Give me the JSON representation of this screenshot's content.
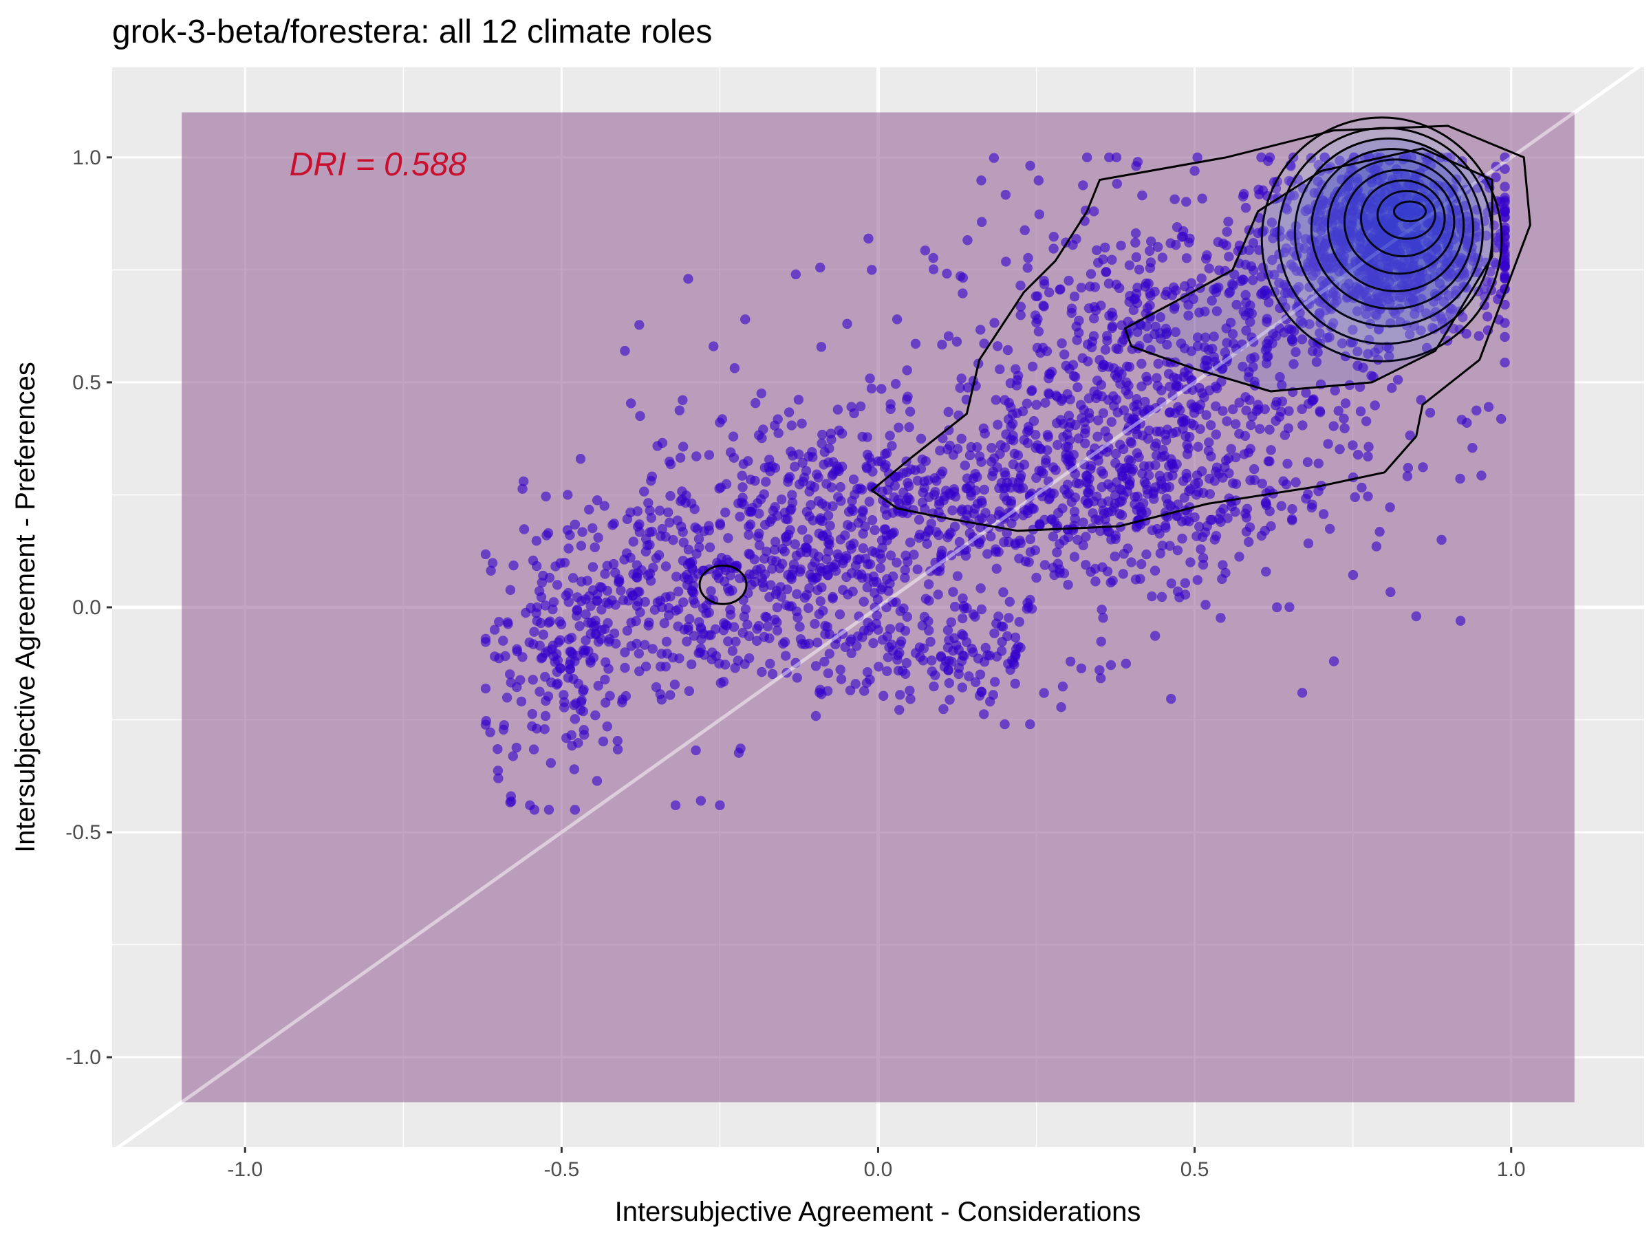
{
  "chart_data": {
    "type": "scatter",
    "title": "grok-3-beta/forestera: all 12 climate roles",
    "xlabel": "Intersubjective Agreement - Considerations",
    "ylabel": "Intersubjective Agreement - Preferences",
    "xlim": [
      -1.21,
      1.21
    ],
    "ylim": [
      -1.2,
      1.2
    ],
    "xticks": [
      -1.0,
      -0.5,
      0.0,
      0.5,
      1.0
    ],
    "xtick_labels": [
      "-1.0",
      "-0.5",
      "0.0",
      "0.5",
      "1.0"
    ],
    "yticks": [
      -1.0,
      -0.5,
      0.0,
      0.5,
      1.0
    ],
    "ytick_labels": [
      "-1.0",
      "-0.5",
      "0.0",
      "0.5",
      "1.0"
    ],
    "grid": true,
    "annotation": {
      "text": "DRI = 0.588",
      "x": -0.93,
      "y": 0.96
    },
    "shaded_region": {
      "x": [
        -1.1,
        1.1
      ],
      "y": [
        -1.1,
        1.1
      ],
      "color": "#9c6d9c"
    },
    "reference_line": {
      "slope": 1,
      "intercept": 0
    },
    "point_color": "#3300cc",
    "point_sample": [
      [
        -0.62,
        -0.07
      ],
      [
        -0.6,
        -0.38
      ],
      [
        -0.58,
        -0.42
      ],
      [
        -0.55,
        -0.44
      ],
      [
        -0.52,
        -0.45
      ],
      [
        -0.48,
        -0.36
      ],
      [
        -0.56,
        0.28
      ],
      [
        -0.47,
        0.33
      ],
      [
        -0.4,
        0.57
      ],
      [
        -0.3,
        0.73
      ],
      [
        -0.26,
        0.58
      ],
      [
        -0.21,
        0.64
      ],
      [
        -0.13,
        0.74
      ],
      [
        -0.01,
        0.75
      ],
      [
        0.03,
        0.64
      ],
      [
        -0.28,
        -0.43
      ],
      [
        -0.25,
        -0.44
      ],
      [
        -0.32,
        -0.44
      ],
      [
        0.2,
        -0.26
      ],
      [
        0.24,
        -0.26
      ],
      [
        0.33,
        1.0
      ],
      [
        0.41,
        0.99
      ],
      [
        0.5,
        0.97
      ],
      [
        0.63,
        0.0
      ],
      [
        0.72,
        -0.12
      ],
      [
        0.67,
        -0.19
      ],
      [
        0.85,
        -0.02
      ],
      [
        0.92,
        -0.03
      ],
      [
        0.93,
        0.41
      ],
      [
        0.89,
        0.15
      ],
      [
        0.75,
        0.9
      ],
      [
        0.8,
        0.86
      ],
      [
        0.85,
        0.88
      ],
      [
        0.7,
        0.7
      ],
      [
        0.55,
        0.62
      ],
      [
        0.35,
        0.55
      ],
      [
        0.2,
        0.3
      ],
      [
        0.1,
        0.2
      ],
      [
        -0.1,
        0.1
      ],
      [
        -0.2,
        0.05
      ],
      [
        -0.3,
        -0.05
      ],
      [
        -0.4,
        -0.1
      ],
      [
        0.0,
        -0.05
      ],
      [
        0.15,
        -0.1
      ],
      [
        0.3,
        0.05
      ],
      [
        0.45,
        0.35
      ],
      [
        0.6,
        0.45
      ],
      [
        0.5,
        0.2
      ],
      [
        0.4,
        0.1
      ],
      [
        0.25,
        0.45
      ]
    ],
    "density_contours": true,
    "density_peak": [
      0.84,
      0.88
    ]
  }
}
